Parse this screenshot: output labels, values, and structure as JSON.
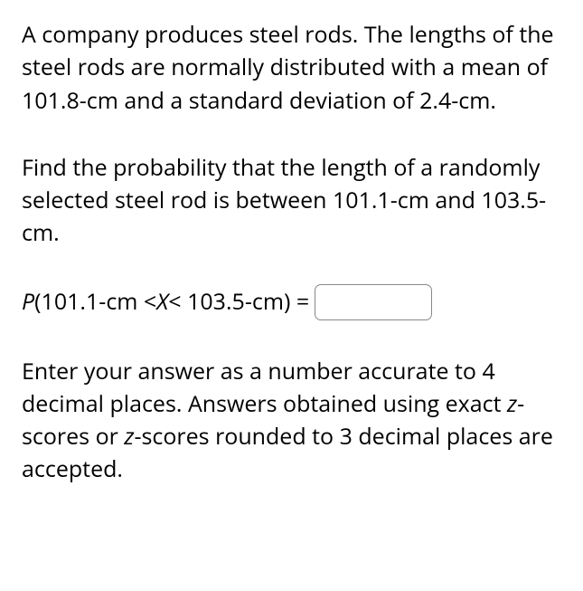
{
  "problem": {
    "intro": "A company produces steel rods. The lengths of the steel rods are normally distributed with a mean of 101.8-cm and a standard deviation of 2.4-cm.",
    "question": "Find the probability that the length of a randomly selected steel rod is between 101.1-cm and 103.5-cm.",
    "equation_prefix_italic": "P",
    "equation_open": "(101.1-cm < ",
    "equation_var": "X",
    "equation_close": " < 103.5-cm) = ",
    "instructions_part1": "Enter your answer as a number accurate to 4 decimal places. Answers obtained using exact ",
    "instructions_z1": "z",
    "instructions_part2": "-scores or ",
    "instructions_z2": "z",
    "instructions_part3": "-scores rounded to 3 decimal places are accepted."
  },
  "input": {
    "value": ""
  }
}
